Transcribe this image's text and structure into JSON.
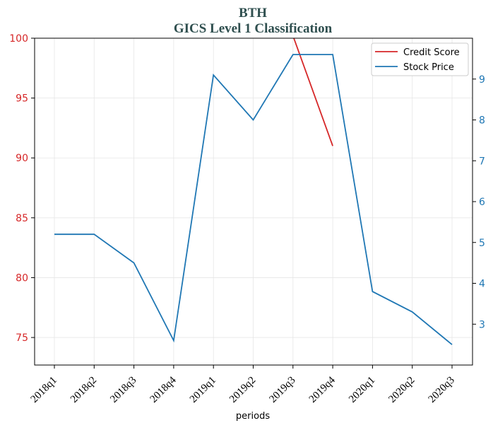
{
  "chart_data": {
    "type": "line",
    "title": "BTH",
    "subtitle": "GICS Level 1 Classification",
    "xlabel": "periods",
    "categories": [
      "2018q1",
      "2018q2",
      "2018q3",
      "2018q4",
      "2019q1",
      "2019q2",
      "2019q3",
      "2019q4",
      "2020q1",
      "2020q2",
      "2020q3"
    ],
    "left_axis": {
      "ylim": [
        72.7,
        100
      ],
      "ticks": [
        75,
        80,
        85,
        90,
        95,
        100
      ],
      "color": "#d62728"
    },
    "right_axis": {
      "ylim": [
        2.0,
        10.0
      ],
      "ticks": [
        3,
        4,
        5,
        6,
        7,
        8,
        9
      ],
      "tick_labels": [
        "3",
        "4",
        "5",
        "6",
        "7",
        "8",
        "9"
      ],
      "color": "#1f77b4"
    },
    "series": [
      {
        "name": "Credit Score",
        "axis": "left",
        "color": "#d62728",
        "values": [
          null,
          null,
          null,
          null,
          null,
          null,
          100.2,
          91.0,
          null,
          null,
          null
        ]
      },
      {
        "name": "Stock Price",
        "axis": "right",
        "color": "#1f77b4",
        "values": [
          5.2,
          5.2,
          4.5,
          2.6,
          9.1,
          8.0,
          9.6,
          9.6,
          3.8,
          3.3,
          2.5
        ]
      }
    ],
    "grid": true,
    "legend": "top-right"
  }
}
